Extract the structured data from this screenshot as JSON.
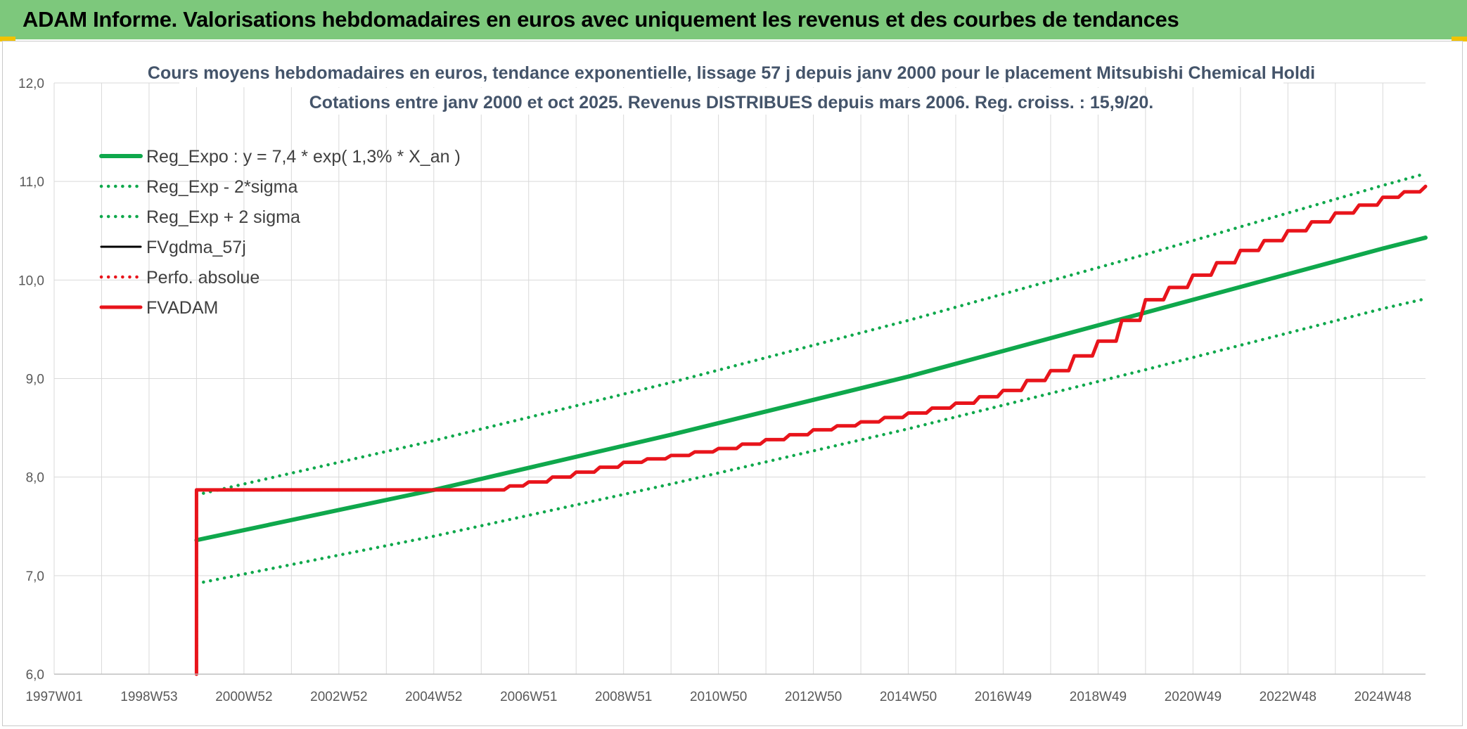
{
  "header": {
    "title": "ADAM Informe. Valorisations hebdomadaires en euros avec uniquement les revenus et des courbes de tendances"
  },
  "colors": {
    "header_bg": "#7dc87c",
    "accent_corner": "#f2c200",
    "reg_green": "#0fa84c",
    "fvadam_red": "#e8141b",
    "fvgdma_black": "#000000",
    "grid": "#d9d9d9"
  },
  "chart_data": {
    "type": "line",
    "title_line1": "Cours moyens hebdomadaires en euros, tendance exponentielle, lissage 57 j depuis janv 2000 pour le placement Mitsubishi Chemical Holdi",
    "title_line2": "Cotations entre janv 2000 et oct 2025. Revenus DISTRIBUES depuis mars 2006. Reg. croiss. : 15,9/20.",
    "ylim": [
      6.0,
      12.0
    ],
    "yticks": [
      "6,0",
      "7,0",
      "8,0",
      "9,0",
      "10,0",
      "11,0",
      "12,0"
    ],
    "xlim": [
      1997.0,
      2025.9
    ],
    "xticks": [
      {
        "label": "1997W01",
        "x": 1997.0
      },
      {
        "label": "1998W53",
        "x": 1999.0
      },
      {
        "label": "2000W52",
        "x": 2001.0
      },
      {
        "label": "2002W52",
        "x": 2003.0
      },
      {
        "label": "2004W52",
        "x": 2005.0
      },
      {
        "label": "2006W51",
        "x": 2007.0
      },
      {
        "label": "2008W51",
        "x": 2009.0
      },
      {
        "label": "2010W50",
        "x": 2011.0
      },
      {
        "label": "2012W50",
        "x": 2013.0
      },
      {
        "label": "2014W50",
        "x": 2015.0
      },
      {
        "label": "2016W49",
        "x": 2017.0
      },
      {
        "label": "2018W49",
        "x": 2019.0
      },
      {
        "label": "2020W49",
        "x": 2021.0
      },
      {
        "label": "2022W48",
        "x": 2023.0
      },
      {
        "label": "2024W48",
        "x": 2025.0
      }
    ],
    "grid": true,
    "legend_position": "top-left",
    "series": [
      {
        "name": "Reg_Expo : y = 7,4 * exp( 1,3% *  X_an )",
        "style": "solid-thick",
        "color": "#0fa84c",
        "x": [
          2000.0,
          2005.0,
          2010.0,
          2015.0,
          2020.0,
          2025.0,
          2025.9
        ],
        "y": [
          7.36,
          7.87,
          8.43,
          9.02,
          9.67,
          10.32,
          10.43
        ]
      },
      {
        "name": "Reg_Exp - 2*sigma",
        "style": "dotted",
        "color": "#0fa84c",
        "x": [
          2000.0,
          2005.0,
          2010.0,
          2015.0,
          2020.0,
          2025.0,
          2025.9
        ],
        "y": [
          6.92,
          7.4,
          7.93,
          8.49,
          9.09,
          9.71,
          9.81
        ]
      },
      {
        "name": "Reg_Exp + 2 sigma",
        "style": "dotted",
        "color": "#0fa84c",
        "x": [
          2000.0,
          2005.0,
          2010.0,
          2015.0,
          2020.0,
          2025.0,
          2025.9
        ],
        "y": [
          7.82,
          8.37,
          8.96,
          9.59,
          10.26,
          10.96,
          11.08
        ]
      },
      {
        "name": "FVgdma_57j",
        "style": "solid",
        "color": "#000000",
        "x": [
          2000.0,
          2000.0,
          2006.2,
          2007.0,
          2008.0,
          2009.0,
          2010.0,
          2011.0,
          2012.0,
          2013.0,
          2014.0,
          2015.0,
          2016.0,
          2017.0,
          2018.0,
          2019.0,
          2020.0,
          2021.0,
          2022.0,
          2023.0,
          2024.0,
          2025.0,
          2025.9
        ],
        "y": [
          6.0,
          7.87,
          7.87,
          7.95,
          8.05,
          8.15,
          8.22,
          8.29,
          8.38,
          8.48,
          8.56,
          8.65,
          8.75,
          8.88,
          9.08,
          9.38,
          9.8,
          10.05,
          10.3,
          10.5,
          10.68,
          10.84,
          10.95
        ]
      },
      {
        "name": "Perfo. absolue",
        "style": "dotted",
        "color": "#e8141b",
        "x": [
          2000.0,
          2000.0,
          2006.2,
          2007.0,
          2008.0,
          2009.0,
          2010.0,
          2011.0,
          2012.0,
          2013.0,
          2014.0,
          2015.0,
          2016.0,
          2017.0,
          2018.0,
          2019.0,
          2020.0,
          2021.0,
          2022.0,
          2023.0,
          2024.0,
          2025.0,
          2025.9
        ],
        "y": [
          6.0,
          7.87,
          7.87,
          7.95,
          8.05,
          8.15,
          8.22,
          8.29,
          8.38,
          8.48,
          8.56,
          8.65,
          8.75,
          8.88,
          9.08,
          9.38,
          9.8,
          10.05,
          10.3,
          10.5,
          10.68,
          10.84,
          10.95
        ]
      },
      {
        "name": "FVADAM",
        "style": "stepped-thick",
        "color": "#e8141b",
        "x": [
          2000.0,
          2000.0,
          2006.2,
          2007.0,
          2008.0,
          2009.0,
          2010.0,
          2011.0,
          2012.0,
          2013.0,
          2014.0,
          2015.0,
          2016.0,
          2017.0,
          2018.0,
          2019.0,
          2020.0,
          2021.0,
          2022.0,
          2023.0,
          2024.0,
          2025.0,
          2025.9
        ],
        "y": [
          6.0,
          7.87,
          7.87,
          7.95,
          8.05,
          8.15,
          8.22,
          8.29,
          8.38,
          8.48,
          8.56,
          8.65,
          8.75,
          8.88,
          9.08,
          9.38,
          9.8,
          10.05,
          10.3,
          10.5,
          10.68,
          10.84,
          10.95
        ]
      }
    ]
  }
}
